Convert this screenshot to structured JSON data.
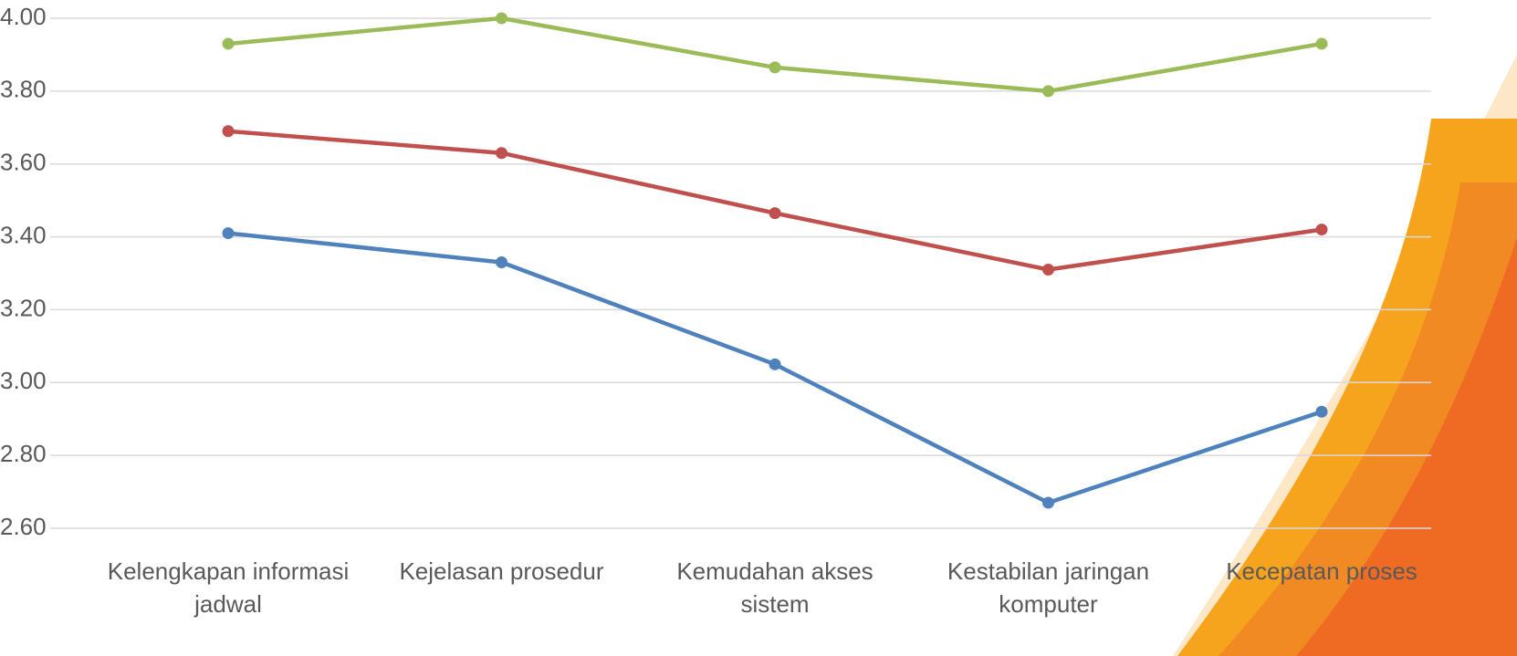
{
  "chart_data": {
    "type": "line",
    "categories": [
      "Kelengkapan informasi jadwal",
      "Kejelasan prosedur",
      "Kemudahan akses sistem",
      "Kestabilan jaringan komputer",
      "Kecepatan proses"
    ],
    "series": [
      {
        "color": "#4f81bd",
        "values": [
          3.41,
          3.33,
          3.05,
          2.67,
          2.92
        ]
      },
      {
        "color": "#c0504d",
        "values": [
          3.69,
          3.63,
          3.465,
          3.31,
          3.42
        ]
      },
      {
        "color": "#9bbb59",
        "values": [
          3.93,
          4.0,
          3.865,
          3.8,
          3.93
        ]
      }
    ],
    "ylim": [
      2.6,
      4.0
    ],
    "yticks": [
      {
        "value": 2.6,
        "label": "2.60"
      },
      {
        "value": 2.8,
        "label": "2.80"
      },
      {
        "value": 3.0,
        "label": "3.00"
      },
      {
        "value": 3.2,
        "label": "3.20"
      },
      {
        "value": 3.4,
        "label": "3.40"
      },
      {
        "value": 3.6,
        "label": "3.60"
      },
      {
        "value": 3.8,
        "label": "3.80"
      },
      {
        "value": 4.0,
        "label": "4.00"
      }
    ],
    "grid": true
  }
}
